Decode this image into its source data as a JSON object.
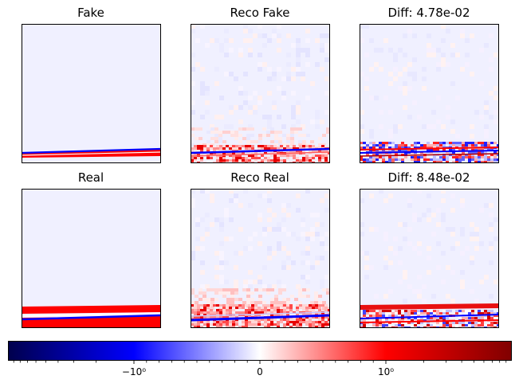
{
  "chart_data": {
    "type": "heatmap",
    "grid": false,
    "panels": [
      {
        "title": "Fake",
        "kind": "fake_input"
      },
      {
        "title": "Reco Fake",
        "kind": "fake_reco"
      },
      {
        "title": "Diff: 4.78e-02",
        "kind": "fake_diff"
      },
      {
        "title": "Real",
        "kind": "real_input"
      },
      {
        "title": "Reco Real",
        "kind": "real_reco"
      },
      {
        "title": "Diff: 8.48e-02",
        "kind": "real_diff"
      }
    ],
    "colorbar": {
      "colormap": "seismic",
      "scale": "symlog",
      "orientation": "horizontal",
      "placement": "bottom",
      "range": [
        -10,
        10
      ],
      "linthresh": 1,
      "ticks": [
        {
          "value": -1,
          "label": "−10⁰"
        },
        {
          "value": 0,
          "label": "0"
        },
        {
          "value": 1,
          "label": "10⁰"
        }
      ],
      "colors": {
        "dark_blue": "#00004c",
        "blue": "#0000ff",
        "white": "#ffffff",
        "red": "#ff0000",
        "dark_red": "#800000"
      }
    }
  }
}
